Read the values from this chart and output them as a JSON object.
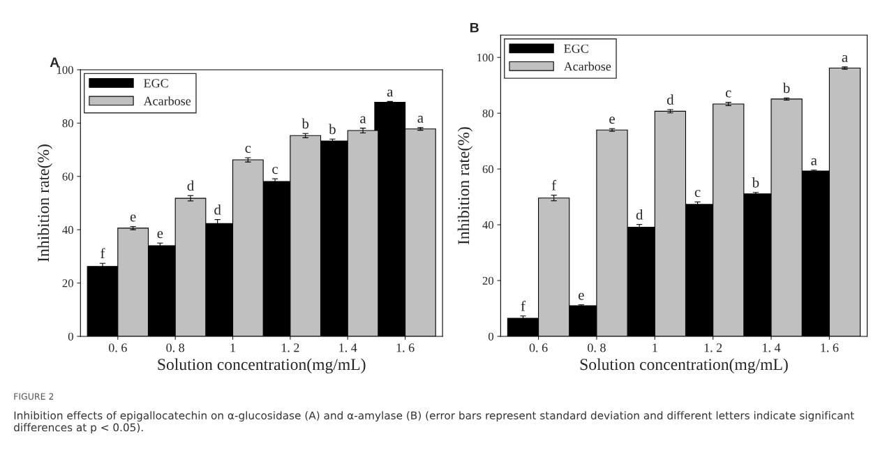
{
  "chart_data": [
    {
      "type": "bar",
      "title": "A",
      "xlabel": "Solution concentration(mg/mL)",
      "ylabel": "Inhibition rate(%)",
      "categories": [
        "0. 6",
        "0. 8",
        "1",
        "1. 2",
        "1. 4",
        "1. 6"
      ],
      "ylim": [
        0,
        100
      ],
      "yticks": [
        0,
        20,
        40,
        60,
        80,
        100
      ],
      "grid": false,
      "legend": "top left",
      "series": [
        {
          "name": "EGC",
          "color": "#000000",
          "values": [
            26.2,
            34.0,
            42.3,
            58.1,
            73.3,
            87.8
          ],
          "errors": [
            1.2,
            1.0,
            1.5,
            1.0,
            0.7,
            0.3
          ],
          "value_labels": [
            "f",
            "e",
            "d",
            "c",
            "b",
            "a"
          ]
        },
        {
          "name": "Acarbose",
          "color": "#c0c0c0",
          "values": [
            40.6,
            51.8,
            66.2,
            75.3,
            77.2,
            77.8
          ],
          "errors": [
            0.6,
            1.0,
            0.8,
            0.8,
            0.9,
            0.5
          ],
          "value_labels": [
            "e",
            "d",
            "c",
            "b",
            "a",
            "a"
          ]
        }
      ],
      "annotations": [
        "FIGURE 2",
        "Inhibition effects of epigallocatechin on α-glucosidase (A) and α-amylase (B) (error bars represent standard deviation and different letters indicate significant differences at p < 0.05)."
      ]
    },
    {
      "type": "bar",
      "title": "B",
      "xlabel": "Solution concentration(mg/mL)",
      "ylabel": "Inhibition rate(%)",
      "categories": [
        "0. 6",
        "0. 8",
        "1",
        "1. 2",
        "1. 4",
        "1. 6"
      ],
      "ylim": [
        0,
        108
      ],
      "yticks": [
        0,
        20,
        40,
        60,
        80,
        100
      ],
      "grid": false,
      "legend": "top left",
      "series": [
        {
          "name": "EGC",
          "color": "#000000",
          "values": [
            6.5,
            11.0,
            39.1,
            47.3,
            51.1,
            59.3
          ],
          "errors": [
            0.8,
            0.3,
            1.0,
            0.9,
            0.5,
            0.3
          ],
          "value_labels": [
            "f",
            "e",
            "d",
            "c",
            "b",
            "a"
          ]
        },
        {
          "name": "Acarbose",
          "color": "#c0c0c0",
          "values": [
            49.6,
            74.0,
            80.7,
            83.3,
            85.1,
            96.2
          ],
          "errors": [
            1.0,
            0.5,
            0.6,
            0.6,
            0.4,
            0.4
          ],
          "value_labels": [
            "f",
            "e",
            "d",
            "c",
            "b",
            "a"
          ]
        }
      ]
    }
  ]
}
